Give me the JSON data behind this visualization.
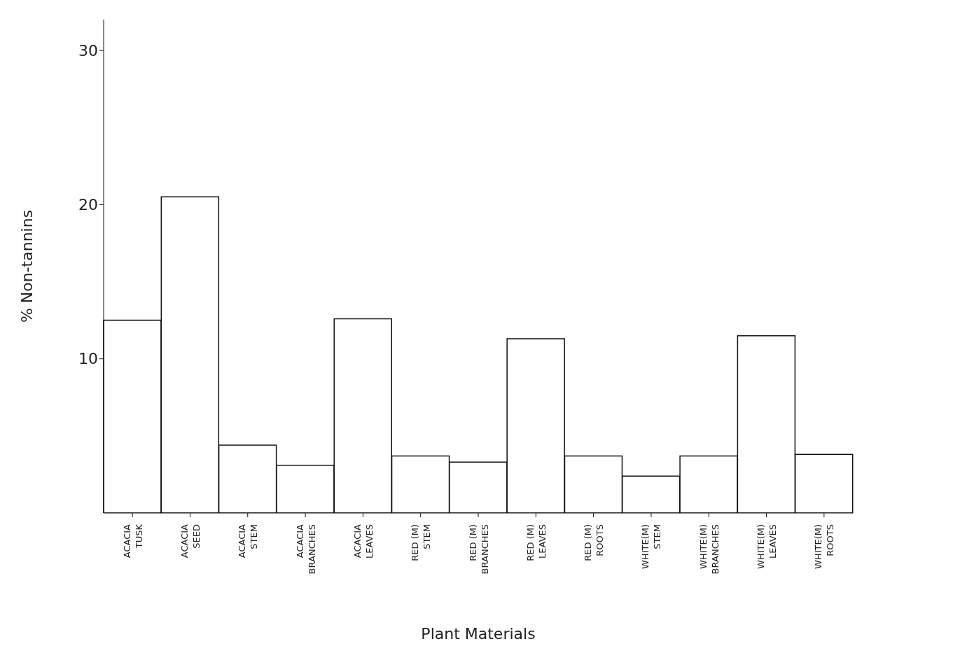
{
  "chart_data": {
    "type": "bar",
    "xlabel": "Plant  Materials",
    "ylabel": "% Non-tannins",
    "categories": [
      "ACACIA\nTUSK",
      "ACACIA\nSEED",
      "ACACIA\nSTEM",
      "ACACIA\nBRANCHES",
      "ACACIA\nLEAVES",
      "RED (M)\nSTEM",
      "RED (M)\nBRANCHES",
      "RED (M)\nLEAVES",
      "RED (M)\nROOTS",
      "WHITE(M)\nSTEM",
      "WHITE(M)\nBRANCHES",
      "WHITE(M)\nLEAVES",
      "WHITE(M)\nROOTS"
    ],
    "values": [
      12.5,
      20.5,
      4.4,
      3.1,
      12.6,
      3.7,
      3.3,
      11.3,
      3.7,
      2.4,
      3.7,
      11.5,
      3.8
    ],
    "color": "#ffffff",
    "ylim": [
      0,
      32
    ],
    "yticks": [
      10,
      20,
      30
    ],
    "grid": false
  }
}
